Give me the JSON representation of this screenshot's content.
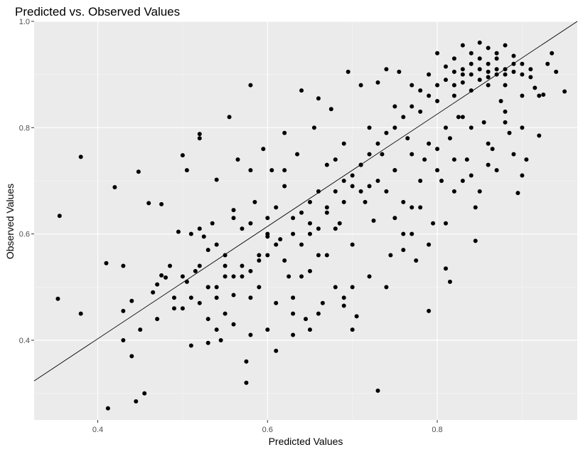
{
  "chart_data": {
    "type": "scatter",
    "title": "Predicted vs. Observed Values",
    "xlabel": "Predicted Values",
    "ylabel": "Observed Values",
    "xlim": [
      0.325,
      0.965
    ],
    "ylim": [
      0.25,
      1.0
    ],
    "x_ticks": [
      0.4,
      0.6,
      0.8
    ],
    "x_tick_labels": [
      "0.4",
      "0.6",
      "0.8"
    ],
    "y_ticks": [
      0.4,
      0.6,
      0.8,
      1.0
    ],
    "y_tick_labels": [
      "0.4",
      "0.6",
      "0.8",
      "1.0"
    ],
    "grid": true,
    "reference_line": {
      "intercept": -0.02,
      "slope": 1.057
    },
    "colors": {
      "panel_background": "#ebebeb",
      "grid_major": "#ffffff",
      "grid_minor": "#f5f5f5",
      "points": "#000000",
      "line": "#000000"
    },
    "points": [
      [
        0.355,
        0.634
      ],
      [
        0.353,
        0.478
      ],
      [
        0.38,
        0.745
      ],
      [
        0.38,
        0.45
      ],
      [
        0.41,
        0.545
      ],
      [
        0.412,
        0.272
      ],
      [
        0.42,
        0.688
      ],
      [
        0.43,
        0.54
      ],
      [
        0.43,
        0.455
      ],
      [
        0.44,
        0.474
      ],
      [
        0.44,
        0.37
      ],
      [
        0.445,
        0.285
      ],
      [
        0.448,
        0.717
      ],
      [
        0.455,
        0.3
      ],
      [
        0.46,
        0.658
      ],
      [
        0.465,
        0.49
      ],
      [
        0.47,
        0.505
      ],
      [
        0.475,
        0.656
      ],
      [
        0.475,
        0.522
      ],
      [
        0.48,
        0.518
      ],
      [
        0.485,
        0.54
      ],
      [
        0.49,
        0.48
      ],
      [
        0.495,
        0.604
      ],
      [
        0.5,
        0.748
      ],
      [
        0.5,
        0.52
      ],
      [
        0.505,
        0.72
      ],
      [
        0.505,
        0.51
      ],
      [
        0.51,
        0.39
      ],
      [
        0.515,
        0.53
      ],
      [
        0.52,
        0.788
      ],
      [
        0.52,
        0.78
      ],
      [
        0.52,
        0.61
      ],
      [
        0.525,
        0.595
      ],
      [
        0.53,
        0.5
      ],
      [
        0.53,
        0.395
      ],
      [
        0.535,
        0.62
      ],
      [
        0.54,
        0.702
      ],
      [
        0.54,
        0.48
      ],
      [
        0.545,
        0.4
      ],
      [
        0.55,
        0.56
      ],
      [
        0.55,
        0.45
      ],
      [
        0.555,
        0.82
      ],
      [
        0.56,
        0.645
      ],
      [
        0.56,
        0.52
      ],
      [
        0.565,
        0.74
      ],
      [
        0.57,
        0.61
      ],
      [
        0.575,
        0.36
      ],
      [
        0.575,
        0.32
      ],
      [
        0.58,
        0.88
      ],
      [
        0.58,
        0.72
      ],
      [
        0.58,
        0.53
      ],
      [
        0.585,
        0.66
      ],
      [
        0.59,
        0.5
      ],
      [
        0.595,
        0.76
      ],
      [
        0.6,
        0.63
      ],
      [
        0.6,
        0.56
      ],
      [
        0.605,
        0.72
      ],
      [
        0.61,
        0.47
      ],
      [
        0.61,
        0.38
      ],
      [
        0.615,
        0.59
      ],
      [
        0.62,
        0.79
      ],
      [
        0.62,
        0.69
      ],
      [
        0.625,
        0.52
      ],
      [
        0.63,
        0.63
      ],
      [
        0.63,
        0.41
      ],
      [
        0.635,
        0.75
      ],
      [
        0.64,
        0.87
      ],
      [
        0.64,
        0.58
      ],
      [
        0.645,
        0.44
      ],
      [
        0.65,
        0.66
      ],
      [
        0.65,
        0.53
      ],
      [
        0.655,
        0.8
      ],
      [
        0.66,
        0.855
      ],
      [
        0.66,
        0.61
      ],
      [
        0.665,
        0.47
      ],
      [
        0.67,
        0.73
      ],
      [
        0.67,
        0.56
      ],
      [
        0.675,
        0.835
      ],
      [
        0.68,
        0.68
      ],
      [
        0.68,
        0.5
      ],
      [
        0.685,
        0.62
      ],
      [
        0.69,
        0.77
      ],
      [
        0.69,
        0.465
      ],
      [
        0.695,
        0.905
      ],
      [
        0.7,
        0.69
      ],
      [
        0.7,
        0.58
      ],
      [
        0.705,
        0.445
      ],
      [
        0.71,
        0.88
      ],
      [
        0.71,
        0.73
      ],
      [
        0.715,
        0.66
      ],
      [
        0.72,
        0.8
      ],
      [
        0.72,
        0.52
      ],
      [
        0.725,
        0.625
      ],
      [
        0.73,
        0.885
      ],
      [
        0.73,
        0.305
      ],
      [
        0.735,
        0.75
      ],
      [
        0.74,
        0.91
      ],
      [
        0.74,
        0.68
      ],
      [
        0.745,
        0.56
      ],
      [
        0.75,
        0.84
      ],
      [
        0.75,
        0.72
      ],
      [
        0.755,
        0.905
      ],
      [
        0.76,
        0.6
      ],
      [
        0.765,
        0.78
      ],
      [
        0.77,
        0.88
      ],
      [
        0.77,
        0.65
      ],
      [
        0.775,
        0.55
      ],
      [
        0.78,
        0.83
      ],
      [
        0.785,
        0.74
      ],
      [
        0.79,
        0.9
      ],
      [
        0.79,
        0.455
      ],
      [
        0.795,
        0.62
      ],
      [
        0.8,
        0.94
      ],
      [
        0.8,
        0.85
      ],
      [
        0.805,
        0.7
      ],
      [
        0.81,
        0.915
      ],
      [
        0.81,
        0.535
      ],
      [
        0.815,
        0.78
      ],
      [
        0.815,
        0.51
      ],
      [
        0.82,
        0.93
      ],
      [
        0.82,
        0.88
      ],
      [
        0.825,
        0.82
      ],
      [
        0.83,
        0.955
      ],
      [
        0.83,
        0.9
      ],
      [
        0.835,
        0.74
      ],
      [
        0.84,
        0.92
      ],
      [
        0.84,
        0.87
      ],
      [
        0.845,
        0.587
      ],
      [
        0.845,
        0.65
      ],
      [
        0.85,
        0.96
      ],
      [
        0.85,
        0.91
      ],
      [
        0.855,
        0.81
      ],
      [
        0.86,
        0.95
      ],
      [
        0.86,
        0.895
      ],
      [
        0.865,
        0.76
      ],
      [
        0.87,
        0.93
      ],
      [
        0.87,
        0.9
      ],
      [
        0.875,
        0.85
      ],
      [
        0.88,
        0.955
      ],
      [
        0.88,
        0.91
      ],
      [
        0.885,
        0.79
      ],
      [
        0.89,
        0.935
      ],
      [
        0.89,
        0.905
      ],
      [
        0.895,
        0.677
      ],
      [
        0.9,
        0.92
      ],
      [
        0.9,
        0.86
      ],
      [
        0.905,
        0.74
      ],
      [
        0.91,
        0.895
      ],
      [
        0.915,
        0.875
      ],
      [
        0.92,
        0.785
      ],
      [
        0.925,
        0.862
      ],
      [
        0.93,
        0.92
      ],
      [
        0.935,
        0.94
      ],
      [
        0.94,
        0.905
      ],
      [
        0.95,
        0.868
      ],
      [
        0.66,
        0.56
      ],
      [
        0.64,
        0.64
      ],
      [
        0.62,
        0.72
      ],
      [
        0.6,
        0.595
      ],
      [
        0.58,
        0.62
      ],
      [
        0.56,
        0.485
      ],
      [
        0.54,
        0.58
      ],
      [
        0.52,
        0.47
      ],
      [
        0.68,
        0.61
      ],
      [
        0.7,
        0.5
      ],
      [
        0.72,
        0.69
      ],
      [
        0.74,
        0.5
      ],
      [
        0.76,
        0.66
      ],
      [
        0.78,
        0.7
      ],
      [
        0.8,
        0.76
      ],
      [
        0.82,
        0.68
      ],
      [
        0.84,
        0.8
      ],
      [
        0.86,
        0.73
      ],
      [
        0.88,
        0.83
      ],
      [
        0.9,
        0.8
      ],
      [
        0.92,
        0.86
      ],
      [
        0.86,
        0.88
      ],
      [
        0.84,
        0.9
      ],
      [
        0.82,
        0.86
      ],
      [
        0.88,
        0.88
      ],
      [
        0.87,
        0.91
      ],
      [
        0.85,
        0.93
      ],
      [
        0.83,
        0.91
      ],
      [
        0.81,
        0.89
      ],
      [
        0.89,
        0.92
      ],
      [
        0.9,
        0.9
      ],
      [
        0.91,
        0.91
      ],
      [
        0.86,
        0.92
      ],
      [
        0.84,
        0.94
      ],
      [
        0.87,
        0.94
      ],
      [
        0.88,
        0.9
      ],
      [
        0.83,
        0.885
      ],
      [
        0.85,
        0.89
      ],
      [
        0.82,
        0.905
      ],
      [
        0.86,
        0.905
      ],
      [
        0.8,
        0.88
      ],
      [
        0.79,
        0.86
      ],
      [
        0.78,
        0.87
      ],
      [
        0.77,
        0.84
      ],
      [
        0.76,
        0.82
      ],
      [
        0.75,
        0.8
      ],
      [
        0.74,
        0.79
      ],
      [
        0.73,
        0.77
      ],
      [
        0.72,
        0.75
      ],
      [
        0.71,
        0.73
      ],
      [
        0.7,
        0.71
      ],
      [
        0.69,
        0.7
      ],
      [
        0.68,
        0.74
      ],
      [
        0.67,
        0.65
      ],
      [
        0.66,
        0.68
      ],
      [
        0.65,
        0.6
      ],
      [
        0.64,
        0.52
      ],
      [
        0.63,
        0.48
      ],
      [
        0.62,
        0.55
      ],
      [
        0.61,
        0.65
      ],
      [
        0.6,
        0.6
      ],
      [
        0.59,
        0.55
      ],
      [
        0.58,
        0.48
      ],
      [
        0.57,
        0.52
      ],
      [
        0.56,
        0.63
      ],
      [
        0.55,
        0.54
      ],
      [
        0.54,
        0.5
      ],
      [
        0.53,
        0.57
      ],
      [
        0.52,
        0.54
      ],
      [
        0.51,
        0.6
      ],
      [
        0.5,
        0.46
      ],
      [
        0.69,
        0.48
      ],
      [
        0.7,
        0.42
      ],
      [
        0.66,
        0.45
      ],
      [
        0.63,
        0.45
      ],
      [
        0.6,
        0.42
      ],
      [
        0.58,
        0.41
      ],
      [
        0.56,
        0.43
      ],
      [
        0.54,
        0.42
      ],
      [
        0.53,
        0.44
      ],
      [
        0.65,
        0.42
      ],
      [
        0.75,
        0.63
      ],
      [
        0.77,
        0.6
      ],
      [
        0.79,
        0.58
      ],
      [
        0.81,
        0.62
      ],
      [
        0.83,
        0.7
      ],
      [
        0.85,
        0.68
      ],
      [
        0.87,
        0.72
      ],
      [
        0.89,
        0.75
      ],
      [
        0.9,
        0.71
      ],
      [
        0.76,
        0.57
      ],
      [
        0.78,
        0.65
      ],
      [
        0.8,
        0.72
      ],
      [
        0.82,
        0.74
      ],
      [
        0.84,
        0.71
      ],
      [
        0.86,
        0.77
      ],
      [
        0.88,
        0.81
      ],
      [
        0.83,
        0.82
      ],
      [
        0.81,
        0.8
      ],
      [
        0.79,
        0.77
      ],
      [
        0.77,
        0.75
      ],
      [
        0.75,
        0.72
      ],
      [
        0.73,
        0.7
      ],
      [
        0.71,
        0.68
      ],
      [
        0.69,
        0.66
      ],
      [
        0.67,
        0.64
      ],
      [
        0.65,
        0.62
      ],
      [
        0.63,
        0.6
      ],
      [
        0.61,
        0.58
      ],
      [
        0.59,
        0.56
      ],
      [
        0.57,
        0.54
      ],
      [
        0.55,
        0.52
      ],
      [
        0.53,
        0.5
      ],
      [
        0.51,
        0.48
      ],
      [
        0.49,
        0.46
      ],
      [
        0.47,
        0.44
      ],
      [
        0.45,
        0.42
      ],
      [
        0.43,
        0.4
      ]
    ]
  }
}
